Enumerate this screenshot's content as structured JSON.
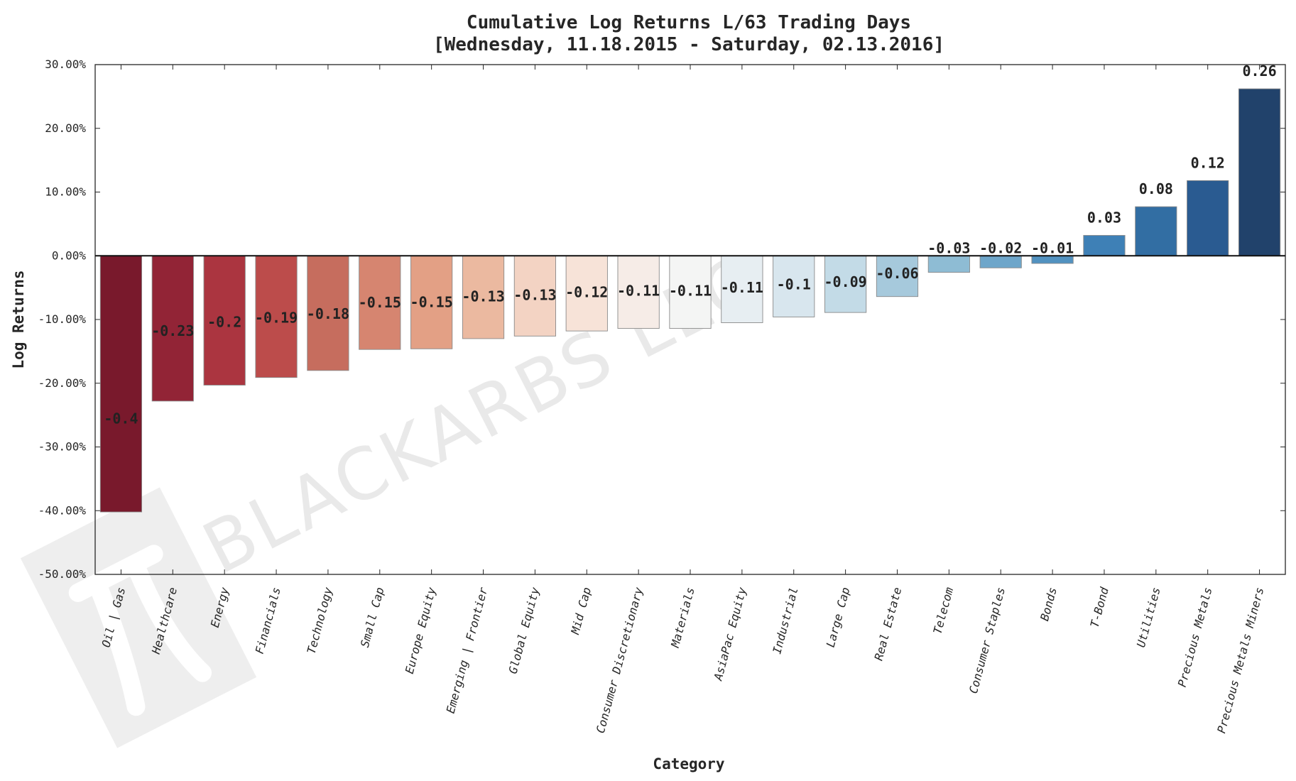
{
  "watermark": {
    "text": "BLACKARBS LLC",
    "logo_icon": "pi-icon"
  },
  "chart_data": {
    "type": "bar",
    "title": "Cumulative Log Returns L/63 Trading Days",
    "subtitle": "[Wednesday, 11.18.2015 - Saturday, 02.13.2016]",
    "xlabel": "Category",
    "ylabel": "Log Returns",
    "ylim": [
      -0.5,
      0.3
    ],
    "yticks": [
      0.3,
      0.2,
      0.1,
      0.0,
      -0.1,
      -0.2,
      -0.3,
      -0.4,
      -0.5
    ],
    "ytick_labels": [
      "30.00%",
      "20.00%",
      "10.00%",
      "0.00%",
      "-10.00%",
      "-20.00%",
      "-30.00%",
      "-40.00%",
      "-50.00%"
    ],
    "grid": false,
    "categories": [
      "Oil | Gas",
      "Healthcare",
      "Energy",
      "Financials",
      "Technology",
      "Small Cap",
      "Europe Equity",
      "Emerging | Frontier",
      "Global Equity",
      "Mid Cap",
      "Consumer Discretionary",
      "Materials",
      "AsiaPac Equity",
      "Industrial",
      "Large Cap",
      "Real Estate",
      "Telecom",
      "Consumer Staples",
      "Bonds",
      "T-Bond",
      "Utilities",
      "Precious Metals",
      "Precious Metals Miners"
    ],
    "values": [
      -0.402,
      -0.228,
      -0.203,
      -0.191,
      -0.18,
      -0.147,
      -0.146,
      -0.13,
      -0.126,
      -0.118,
      -0.114,
      -0.114,
      -0.105,
      -0.096,
      -0.089,
      -0.064,
      -0.026,
      -0.019,
      -0.012,
      0.032,
      0.077,
      0.118,
      0.262
    ],
    "labels": [
      "-0.4",
      "-0.23",
      "-0.2",
      "-0.19",
      "-0.18",
      "-0.15",
      "-0.15",
      "-0.13",
      "-0.13",
      "-0.12",
      "-0.11",
      "-0.11",
      "-0.11",
      "-0.1",
      "-0.09",
      "-0.06",
      "-0.03",
      "-0.02",
      "-0.01",
      "0.03",
      "0.08",
      "0.12",
      "0.26"
    ],
    "colors": [
      "#79192c",
      "#922436",
      "#ab3540",
      "#bc4c4b",
      "#c66d5e",
      "#d68570",
      "#e3a085",
      "#ebb9a0",
      "#f3d3c3",
      "#f7e3d8",
      "#f6ece7",
      "#f4f5f4",
      "#e7eef2",
      "#d8e6ee",
      "#c3dbe7",
      "#a6c9dc",
      "#8ebcd4",
      "#6ea6ca",
      "#5292c0",
      "#3e80b6",
      "#326ea3",
      "#2a5b91",
      "#21426b"
    ]
  }
}
